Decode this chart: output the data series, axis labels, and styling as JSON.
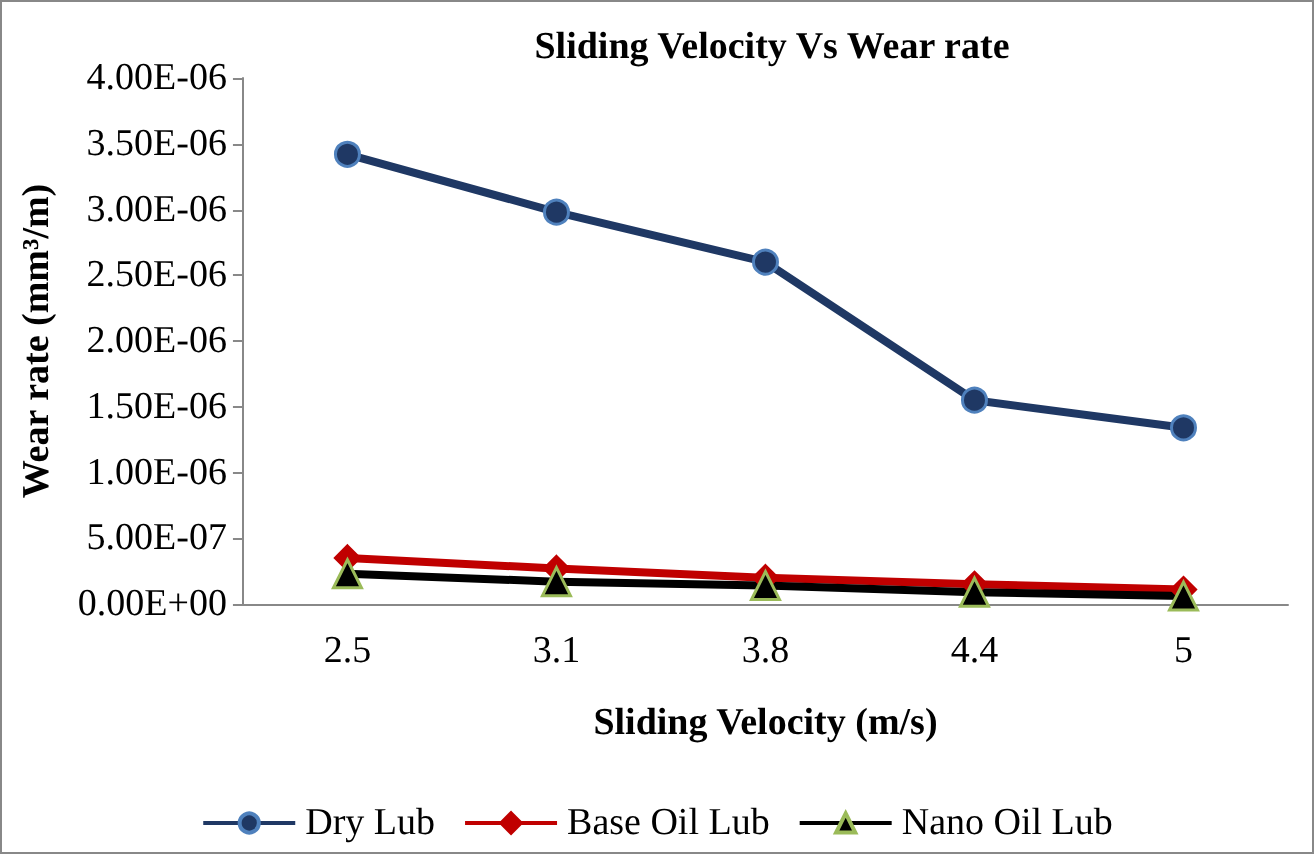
{
  "chart_data": {
    "type": "line",
    "title": "Sliding Velocity Vs Wear rate",
    "xlabel": "Sliding Velocity (m/s)",
    "ylabel": "Wear rate (mm³/m)",
    "categories": [
      "2.5",
      "3.1",
      "3.8",
      "4.4",
      "5"
    ],
    "series": [
      {
        "name": "Dry Lub",
        "color": "#1f3864",
        "marker": "circle",
        "values": [
          3.42e-06,
          2.98e-06,
          2.6e-06,
          1.55e-06,
          1.34e-06
        ]
      },
      {
        "name": "Base Oil Lub",
        "color": "#c00000",
        "marker": "diamond",
        "values": [
          3.5e-07,
          2.7e-07,
          2e-07,
          1.5e-07,
          1.1e-07
        ]
      },
      {
        "name": "Nano Oil Lub",
        "color": "#000000",
        "marker": "triangle",
        "values": [
          2.3e-07,
          1.7e-07,
          1.4e-07,
          9e-08,
          6e-08
        ]
      }
    ],
    "ylim": [
      0,
      4e-06
    ],
    "yticks": [
      {
        "value": 0,
        "label": "0.00E+00"
      },
      {
        "value": 5e-07,
        "label": "5.00E-07"
      },
      {
        "value": 1e-06,
        "label": "1.00E-06"
      },
      {
        "value": 1.5e-06,
        "label": "1.50E-06"
      },
      {
        "value": 2e-06,
        "label": "2.00E-06"
      },
      {
        "value": 2.5e-06,
        "label": "2.50E-06"
      },
      {
        "value": 3e-06,
        "label": "3.00E-06"
      },
      {
        "value": 3.5e-06,
        "label": "3.50E-06"
      },
      {
        "value": 4e-06,
        "label": "4.00E-06"
      }
    ],
    "grid": false,
    "legend": "bottom"
  }
}
